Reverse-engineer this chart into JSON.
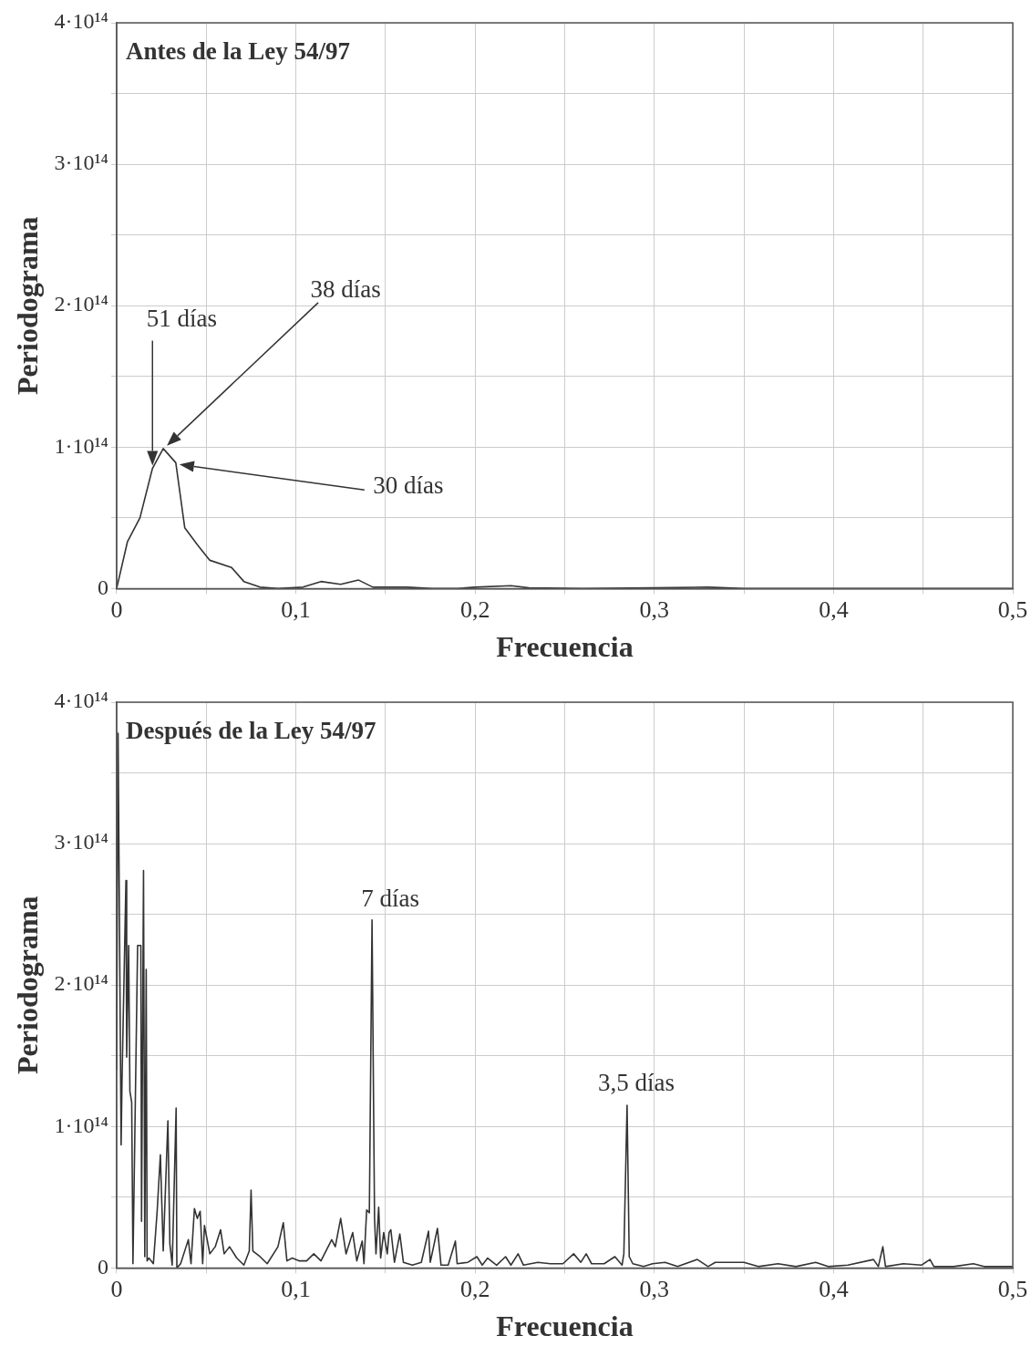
{
  "chart_data": [
    {
      "type": "line",
      "title": "Antes de la Ley 54/97",
      "xlabel": "Frecuencia",
      "ylabel": "Periodograma",
      "color": "#333333",
      "grid": true,
      "xlim": [
        0,
        0.5
      ],
      "ylim": [
        0,
        400000000000000.0
      ],
      "xticks": [
        0,
        {
          "value": 0.05,
          "label": null
        },
        {
          "value": 0.1,
          "label": "0,1"
        },
        {
          "value": 0.15,
          "label": null
        },
        {
          "value": 0.2,
          "label": "0,2"
        },
        {
          "value": 0.25,
          "label": null
        },
        {
          "value": 0.3,
          "label": "0,3"
        },
        {
          "value": 0.35,
          "label": null
        },
        {
          "value": 0.4,
          "label": "0,4"
        },
        {
          "value": 0.45,
          "label": null
        },
        {
          "value": 0.5,
          "label": "0,5"
        }
      ],
      "yticks": [
        0,
        {
          "value": 50000000000000.0,
          "label": null
        },
        {
          "value": 100000000000000.0,
          "label": "1·10¹⁴"
        },
        {
          "value": 150000000000000.0,
          "label": null
        },
        {
          "value": 200000000000000.0,
          "label": "2·10¹⁴"
        },
        {
          "value": 250000000000000.0,
          "label": null
        },
        {
          "value": 300000000000000.0,
          "label": "3·10¹⁴"
        },
        {
          "value": 350000000000000.0,
          "label": null
        },
        {
          "value": 400000000000000.0,
          "label": "4·10¹⁴"
        }
      ],
      "x": [
        0,
        0.006,
        0.013,
        0.02,
        0.026,
        0.033,
        0.038,
        0.045,
        0.052,
        0.064,
        0.071,
        0.08,
        0.09,
        0.104,
        0.114,
        0.125,
        0.135,
        0.143,
        0.162,
        0.176,
        0.19,
        0.2,
        0.22,
        0.23,
        0.26,
        0.3,
        0.33,
        0.35,
        0.4,
        0.45,
        0.5
      ],
      "values": [
        0,
        33000000000000.0,
        50000000000000.0,
        85000000000000.0,
        99000000000000.0,
        89000000000000.0,
        43000000000000.0,
        31000000000000.0,
        20000000000000.0,
        15000000000000.0,
        5000000000000.0,
        1000000000000.0,
        0,
        1000000000000.0,
        5000000000000.0,
        3000000000000.0,
        6000000000000.0,
        1000000000000.0,
        1000000000000.0,
        0,
        0,
        1000000000000.0,
        2000000000000.0,
        500000000000.0,
        0,
        500000000000.0,
        1000000000000.0,
        0,
        0,
        0,
        0
      ],
      "annotations": [
        "51 días",
        "38 días",
        "30 días"
      ]
    },
    {
      "type": "line",
      "title": "Después de la Ley 54/97",
      "xlabel": "Frecuencia",
      "ylabel": "Periodograma",
      "color": "#333333",
      "grid": true,
      "xlim": [
        0,
        0.5
      ],
      "ylim": [
        0,
        400000000000000.0
      ],
      "xticks": [
        0,
        {
          "value": 0.05,
          "label": null
        },
        {
          "value": 0.1,
          "label": "0,1"
        },
        {
          "value": 0.15,
          "label": null
        },
        {
          "value": 0.2,
          "label": "0,2"
        },
        {
          "value": 0.25,
          "label": null
        },
        {
          "value": 0.3,
          "label": "0,3"
        },
        {
          "value": 0.35,
          "label": null
        },
        {
          "value": 0.4,
          "label": "0,4"
        },
        {
          "value": 0.45,
          "label": null
        },
        {
          "value": 0.5,
          "label": "0,5"
        }
      ],
      "yticks": [
        0,
        {
          "value": 50000000000000.0,
          "label": null
        },
        {
          "value": 100000000000000.0,
          "label": "1·10¹⁴"
        },
        {
          "value": 150000000000000.0,
          "label": null
        },
        {
          "value": 200000000000000.0,
          "label": "2·10¹⁴"
        },
        {
          "value": 250000000000000.0,
          "label": null
        },
        {
          "value": 300000000000000.0,
          "label": "3·10¹⁴"
        },
        {
          "value": 350000000000000.0,
          "label": null
        },
        {
          "value": 400000000000000.0,
          "label": "4·10¹⁴"
        }
      ],
      "x": [
        0,
        0.0008,
        0.0025,
        0.003,
        0.0052,
        0.0056,
        0.0067,
        0.0074,
        0.0084,
        0.0091,
        0.0117,
        0.0135,
        0.0139,
        0.015,
        0.0157,
        0.0165,
        0.017,
        0.018,
        0.0205,
        0.0226,
        0.0244,
        0.026,
        0.0286,
        0.0297,
        0.031,
        0.0332,
        0.0336,
        0.0357,
        0.04,
        0.0415,
        0.0434,
        0.045,
        0.0466,
        0.048,
        0.049,
        0.052,
        0.055,
        0.058,
        0.06,
        0.063,
        0.067,
        0.071,
        0.074,
        0.075,
        0.076,
        0.08,
        0.084,
        0.09,
        0.093,
        0.095,
        0.098,
        0.102,
        0.106,
        0.11,
        0.114,
        0.12,
        0.122,
        0.125,
        0.128,
        0.1317,
        0.134,
        0.137,
        0.138,
        0.1395,
        0.141,
        0.1425,
        0.1439,
        0.1447,
        0.1462,
        0.1473,
        0.149,
        0.151,
        0.152,
        0.153,
        0.155,
        0.158,
        0.16,
        0.165,
        0.17,
        0.174,
        0.175,
        0.179,
        0.181,
        0.185,
        0.189,
        0.19,
        0.196,
        0.201,
        0.204,
        0.207,
        0.212,
        0.217,
        0.22,
        0.224,
        0.227,
        0.235,
        0.242,
        0.249,
        0.255,
        0.259,
        0.262,
        0.265,
        0.272,
        0.278,
        0.282,
        0.283,
        0.2848,
        0.286,
        0.288,
        0.294,
        0.299,
        0.306,
        0.313,
        0.324,
        0.33,
        0.334,
        0.344,
        0.35,
        0.358,
        0.369,
        0.379,
        0.39,
        0.397,
        0.408,
        0.4223,
        0.425,
        0.4275,
        0.429,
        0.439,
        0.449,
        0.4538,
        0.456,
        0.467,
        0.478,
        0.484,
        0.5
      ],
      "values": [
        140000000000000.0,
        378000000000000.0,
        87000000000000.0,
        133000000000000.0,
        274000000000000.0,
        149000000000000.0,
        228000000000000.0,
        125000000000000.0,
        117000000000000.0,
        3000000000000.0,
        228000000000000.0,
        228000000000000.0,
        33000000000000.0,
        281000000000000.0,
        8000000000000.0,
        211000000000000.0,
        5000000000000.0,
        7000000000000.0,
        3000000000000.0,
        40000000000000.0,
        80000000000000.0,
        12000000000000.0,
        104000000000000.0,
        17000000000000.0,
        2000000000000.0,
        113000000000000.0,
        0,
        3000000000000.0,
        20000000000000.0,
        3000000000000.0,
        42000000000000.0,
        35000000000000.0,
        40000000000000.0,
        3000000000000.0,
        30000000000000.0,
        10000000000000.0,
        15000000000000.0,
        27000000000000.0,
        10000000000000.0,
        15000000000000.0,
        7000000000000.0,
        2000000000000.0,
        12000000000000.0,
        55000000000000.0,
        12000000000000.0,
        8000000000000.0,
        3000000000000.0,
        15000000000000.0,
        32000000000000.0,
        5000000000000.0,
        7000000000000.0,
        5000000000000.0,
        5000000000000.0,
        10000000000000.0,
        5000000000000.0,
        20000000000000.0,
        15000000000000.0,
        35000000000000.0,
        10000000000000.0,
        25000000000000.0,
        5000000000000.0,
        19000000000000.0,
        3000000000000.0,
        41000000000000.0,
        39000000000000.0,
        246000000000000.0,
        35000000000000.0,
        10000000000000.0,
        43000000000000.0,
        7000000000000.0,
        25000000000000.0,
        10000000000000.0,
        25000000000000.0,
        27000000000000.0,
        4000000000000.0,
        24000000000000.0,
        4000000000000.0,
        2000000000000.0,
        4000000000000.0,
        26000000000000.0,
        4000000000000.0,
        28000000000000.0,
        2000000000000.0,
        2000000000000.0,
        19000000000000.0,
        3000000000000.0,
        4000000000000.0,
        8000000000000.0,
        2000000000000.0,
        7000000000000.0,
        2000000000000.0,
        8000000000000.0,
        2000000000000.0,
        10000000000000.0,
        2000000000000.0,
        4000000000000.0,
        3000000000000.0,
        3000000000000.0,
        10000000000000.0,
        4000000000000.0,
        10000000000000.0,
        3000000000000.0,
        3000000000000.0,
        8000000000000.0,
        2000000000000.0,
        10000000000000.0,
        115000000000000.0,
        8000000000000.0,
        3000000000000.0,
        1000000000000.0,
        3000000000000.0,
        4000000000000.0,
        1000000000000.0,
        6000000000000.0,
        1000000000000.0,
        4000000000000.0,
        4000000000000.0,
        4000000000000.0,
        1000000000000.0,
        3000000000000.0,
        1000000000000.0,
        4000000000000.0,
        1000000000000.0,
        2000000000000.0,
        6000000000000.0,
        1000000000000.0,
        15000000000000.0,
        1000000000000.0,
        3000000000000.0,
        2000000000000.0,
        6000000000000.0,
        1000000000000.0,
        1000000000000.0,
        3000000000000.0,
        1000000000000.0,
        1000000000000.0
      ],
      "annotations": [
        {
          "text": "7 días",
          "x": 0.1425,
          "y": 246000000000000.0
        },
        {
          "text": "3,5 días",
          "x": 0.2848,
          "y": 115000000000000.0
        }
      ]
    }
  ]
}
